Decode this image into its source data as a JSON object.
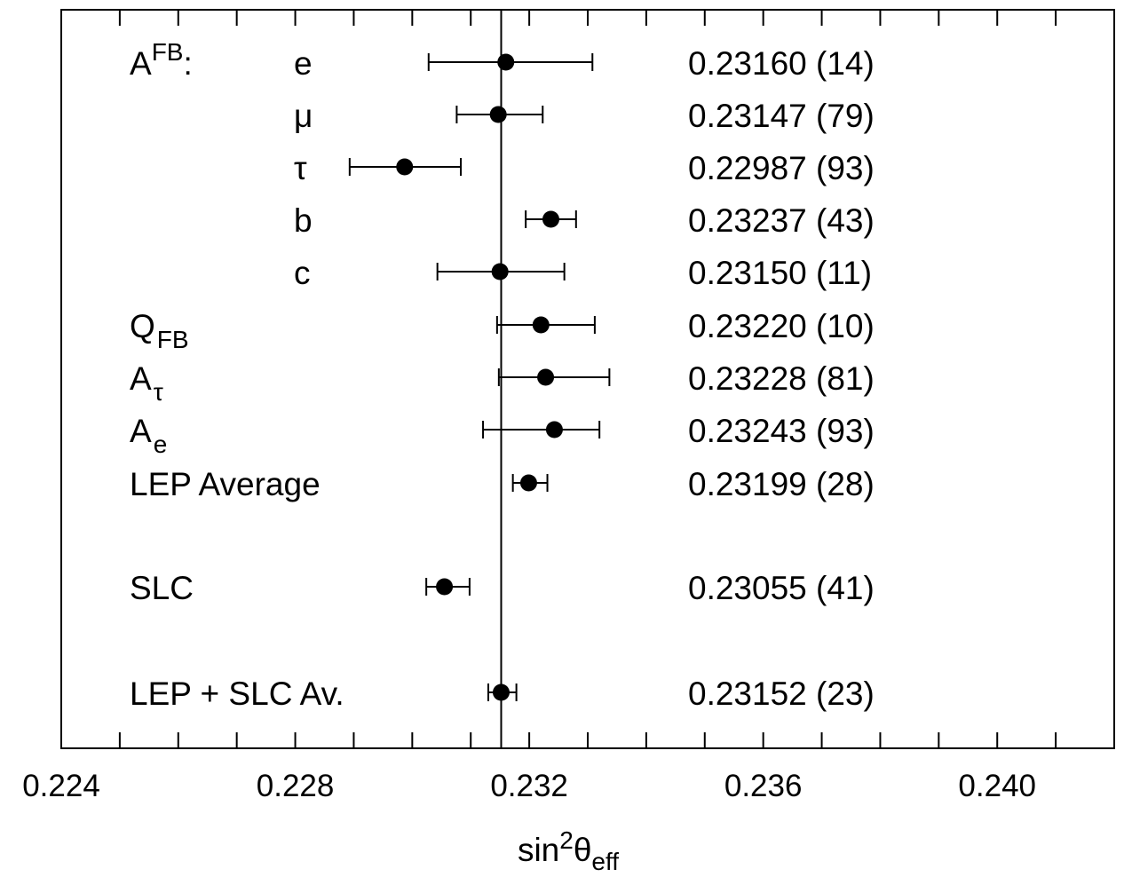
{
  "chart_data": {
    "type": "scatter",
    "xlabel": "sin²θeff",
    "xlim": [
      0.224,
      0.242
    ],
    "x_ticks": [
      "0.224",
      "0.228",
      "0.232",
      "0.236",
      "0.240"
    ],
    "x_tick_values": [
      0.224,
      0.228,
      0.232,
      0.236,
      0.24
    ],
    "x_minor_step": 0.001,
    "reference_line": 0.23152,
    "grid": false,
    "group_label": {
      "main": "A",
      "sup": "FB",
      "suffix": ":"
    },
    "points": [
      {
        "label": "e",
        "value": 0.2316,
        "low": 0.23028,
        "high": 0.23308,
        "value_label": "0.23160 (14)"
      },
      {
        "label": "μ",
        "value": 0.23147,
        "low": 0.23076,
        "high": 0.23223,
        "value_label": "0.23147 (79)"
      },
      {
        "label": "τ",
        "value": 0.22987,
        "low": 0.22893,
        "high": 0.23083,
        "value_label": "0.22987 (93)"
      },
      {
        "label": "b",
        "value": 0.23237,
        "low": 0.23194,
        "high": 0.2328,
        "value_label": "0.23237 (43)"
      },
      {
        "label": "c",
        "value": 0.2315,
        "low": 0.23043,
        "high": 0.2326,
        "value_label": "0.23150 (11)"
      },
      {
        "label": "Q",
        "label_sub": "FB",
        "value": 0.2322,
        "low": 0.23145,
        "high": 0.23312,
        "value_label": "0.23220 (10)"
      },
      {
        "label": "A",
        "label_sub": "τ",
        "value": 0.23228,
        "low": 0.23148,
        "high": 0.23337,
        "value_label": "0.23228 (81)"
      },
      {
        "label": "A",
        "label_sub": "e",
        "value": 0.23243,
        "low": 0.23121,
        "high": 0.2332,
        "value_label": "0.23243 (93)"
      },
      {
        "label": "LEP Average",
        "value": 0.23199,
        "low": 0.23172,
        "high": 0.23231,
        "value_label": "0.23199 (28)"
      },
      {
        "label": "SLC",
        "value": 0.23055,
        "low": 0.23024,
        "high": 0.23098,
        "value_label": "0.23055 (41)"
      },
      {
        "label": "LEP + SLC Av.",
        "value": 0.23152,
        "low": 0.2313,
        "high": 0.23178,
        "value_label": "0.23152 (23)"
      }
    ]
  }
}
